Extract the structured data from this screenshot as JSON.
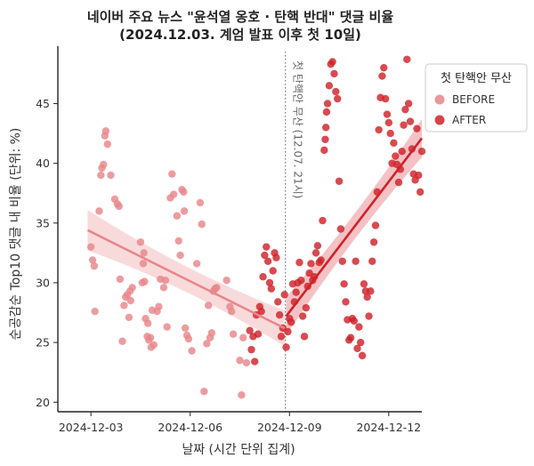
{
  "chart_data": {
    "type": "scatter",
    "title_line1": "네이버 주요 뉴스 \"윤석열 옹호 · 탄핵 반대\" 댓글 비율",
    "title_line2": "(2024.12.03. 계엄 발표 이후 첫 10일)",
    "xlabel": "날짜 (시간 단위 집계)",
    "ylabel": "순공감순 Top10 댓글 내 비율 (단위: %)",
    "x_ticks": [
      "2024-12-03",
      "2024-12-06",
      "2024-12-09",
      "2024-12-12"
    ],
    "x_range_days": [
      -1.0,
      10.0
    ],
    "y_ticks": [
      20,
      25,
      30,
      35,
      40,
      45
    ],
    "ylim": [
      19.2,
      49.8
    ],
    "grid": false,
    "legend_position": "top-right",
    "legend_title": "첫 탄핵안 무산",
    "vline": {
      "x_day": 5.875,
      "label": "첫 탄핵안 무산 (12.07. 21시)"
    },
    "colors": {
      "before": "#E8868A",
      "after": "#D0222A",
      "before_band": "#F6CACC",
      "after_band": "#EFA8AB",
      "vline": "#777777"
    },
    "series": [
      {
        "name": "BEFORE",
        "trend": {
          "x": [
            -0.1,
            5.85
          ],
          "y": [
            34.4,
            26.2
          ]
        },
        "points": [
          [
            0.0,
            33.0
          ],
          [
            0.05,
            31.9
          ],
          [
            0.1,
            31.4
          ],
          [
            0.12,
            27.6
          ],
          [
            0.25,
            36.0
          ],
          [
            0.3,
            39.0
          ],
          [
            0.33,
            39.6
          ],
          [
            0.38,
            39.9
          ],
          [
            0.42,
            42.3
          ],
          [
            0.45,
            42.7
          ],
          [
            0.5,
            41.6
          ],
          [
            0.6,
            39.0
          ],
          [
            0.72,
            37.0
          ],
          [
            0.8,
            36.6
          ],
          [
            0.85,
            36.4
          ],
          [
            0.88,
            30.3
          ],
          [
            0.95,
            25.1
          ],
          [
            1.0,
            28.1
          ],
          [
            1.05,
            28.8
          ],
          [
            1.1,
            29.0
          ],
          [
            1.15,
            27.1
          ],
          [
            1.18,
            29.3
          ],
          [
            1.2,
            28.5
          ],
          [
            1.25,
            29.6
          ],
          [
            1.5,
            33.4
          ],
          [
            1.55,
            30.0
          ],
          [
            1.58,
            31.6
          ],
          [
            1.6,
            32.5
          ],
          [
            1.62,
            30.1
          ],
          [
            1.65,
            27.0
          ],
          [
            1.7,
            25.5
          ],
          [
            1.72,
            26.6
          ],
          [
            1.75,
            25.2
          ],
          [
            1.8,
            25.4
          ],
          [
            1.82,
            24.6
          ],
          [
            1.85,
            27.7
          ],
          [
            1.9,
            24.8
          ],
          [
            2.0,
            27.6
          ],
          [
            2.05,
            28.0
          ],
          [
            2.1,
            30.3
          ],
          [
            2.2,
            29.6
          ],
          [
            2.25,
            30.2
          ],
          [
            2.3,
            26.3
          ],
          [
            2.4,
            37.1
          ],
          [
            2.45,
            39.1
          ],
          [
            2.5,
            37.4
          ],
          [
            2.6,
            35.6
          ],
          [
            2.65,
            33.5
          ],
          [
            2.7,
            32.3
          ],
          [
            2.75,
            37.8
          ],
          [
            2.8,
            37.6
          ],
          [
            2.82,
            36.0
          ],
          [
            2.85,
            26.2
          ],
          [
            2.9,
            25.6
          ],
          [
            2.95,
            25.3
          ],
          [
            3.05,
            24.3
          ],
          [
            3.2,
            31.6
          ],
          [
            3.3,
            36.7
          ],
          [
            3.35,
            34.9
          ],
          [
            3.42,
            20.9
          ],
          [
            3.5,
            24.9
          ],
          [
            3.55,
            28.1
          ],
          [
            3.6,
            25.4
          ],
          [
            3.65,
            25.8
          ],
          [
            3.7,
            29.3
          ],
          [
            3.75,
            29.5
          ],
          [
            3.8,
            29.6
          ],
          [
            4.1,
            30.2
          ],
          [
            4.2,
            28.0
          ],
          [
            4.25,
            27.6
          ],
          [
            4.3,
            25.7
          ],
          [
            4.5,
            23.5
          ],
          [
            4.55,
            20.6
          ],
          [
            4.6,
            25.4
          ],
          [
            4.7,
            23.3
          ]
        ]
      },
      {
        "name": "AFTER",
        "trend": {
          "x": [
            5.9,
            10.0
          ],
          "y": [
            27.2,
            42.1
          ]
        },
        "points": [
          [
            4.8,
            26.0
          ],
          [
            4.85,
            24.4
          ],
          [
            4.9,
            25.5
          ],
          [
            4.95,
            23.4
          ],
          [
            5.0,
            27.3
          ],
          [
            5.05,
            25.7
          ],
          [
            5.1,
            28.0
          ],
          [
            5.15,
            27.6
          ],
          [
            5.2,
            30.5
          ],
          [
            5.25,
            32.3
          ],
          [
            5.3,
            33.0
          ],
          [
            5.35,
            31.8
          ],
          [
            5.4,
            30.0
          ],
          [
            5.45,
            29.5
          ],
          [
            5.5,
            31.0
          ],
          [
            5.55,
            32.5
          ],
          [
            5.6,
            32.1
          ],
          [
            5.65,
            28.4
          ],
          [
            5.7,
            27.3
          ],
          [
            5.75,
            25.5
          ],
          [
            5.8,
            26.2
          ],
          [
            5.85,
            29.0
          ],
          [
            5.9,
            24.6
          ],
          [
            5.95,
            25.9
          ],
          [
            6.0,
            27.0
          ],
          [
            6.05,
            26.7
          ],
          [
            6.1,
            29.9
          ],
          [
            6.15,
            28.4
          ],
          [
            6.2,
            29.2
          ],
          [
            6.25,
            30.0
          ],
          [
            6.3,
            31.7
          ],
          [
            6.35,
            30.2
          ],
          [
            6.4,
            27.2
          ],
          [
            6.45,
            25.5
          ],
          [
            6.5,
            27.9
          ],
          [
            6.55,
            29.7
          ],
          [
            6.6,
            30.8
          ],
          [
            6.65,
            31.6
          ],
          [
            6.7,
            30.2
          ],
          [
            6.75,
            30.5
          ],
          [
            6.8,
            32.5
          ],
          [
            6.85,
            33.1
          ],
          [
            6.9,
            31.7
          ],
          [
            6.95,
            31.9
          ],
          [
            7.0,
            35.2
          ],
          [
            7.05,
            41.1
          ],
          [
            7.08,
            42.0
          ],
          [
            7.1,
            43.0
          ],
          [
            7.12,
            44.3
          ],
          [
            7.15,
            45.0
          ],
          [
            7.2,
            46.5
          ],
          [
            7.25,
            48.3
          ],
          [
            7.3,
            48.5
          ],
          [
            7.35,
            47.5
          ],
          [
            7.4,
            46.0
          ],
          [
            7.45,
            45.4
          ],
          [
            7.5,
            38.5
          ],
          [
            7.55,
            34.5
          ],
          [
            7.6,
            31.8
          ],
          [
            7.65,
            29.9
          ],
          [
            7.7,
            28.4
          ],
          [
            7.75,
            26.9
          ],
          [
            7.8,
            25.2
          ],
          [
            7.85,
            25.4
          ],
          [
            7.9,
            27.0
          ],
          [
            7.95,
            26.8
          ],
          [
            8.0,
            31.8
          ],
          [
            8.05,
            24.5
          ],
          [
            8.1,
            26.3
          ],
          [
            8.15,
            25.0
          ],
          [
            8.2,
            23.9
          ],
          [
            8.25,
            29.9
          ],
          [
            8.3,
            29.3
          ],
          [
            8.35,
            28.8
          ],
          [
            8.4,
            27.2
          ],
          [
            8.45,
            29.3
          ],
          [
            8.5,
            31.8
          ],
          [
            8.55,
            33.4
          ],
          [
            8.6,
            34.8
          ],
          [
            8.65,
            37.6
          ],
          [
            8.7,
            42.8
          ],
          [
            8.75,
            45.5
          ],
          [
            8.8,
            47.3
          ],
          [
            8.85,
            48.0
          ],
          [
            8.9,
            45.4
          ],
          [
            8.95,
            44.1
          ],
          [
            9.0,
            43.4
          ],
          [
            9.05,
            42.5
          ],
          [
            9.1,
            40.0
          ],
          [
            9.15,
            41.7
          ],
          [
            9.2,
            40.6
          ],
          [
            9.25,
            39.9
          ],
          [
            9.3,
            38.4
          ],
          [
            9.35,
            39.5
          ],
          [
            9.4,
            41.0
          ],
          [
            9.45,
            43.2
          ],
          [
            9.5,
            44.5
          ],
          [
            9.55,
            48.7
          ],
          [
            9.6,
            45.0
          ],
          [
            9.65,
            43.5
          ],
          [
            9.7,
            41.2
          ],
          [
            9.75,
            39.1
          ],
          [
            9.8,
            38.6
          ],
          [
            9.85,
            42.9
          ],
          [
            9.9,
            39.0
          ],
          [
            9.95,
            37.6
          ],
          [
            10.0,
            41.0
          ]
        ]
      }
    ]
  }
}
